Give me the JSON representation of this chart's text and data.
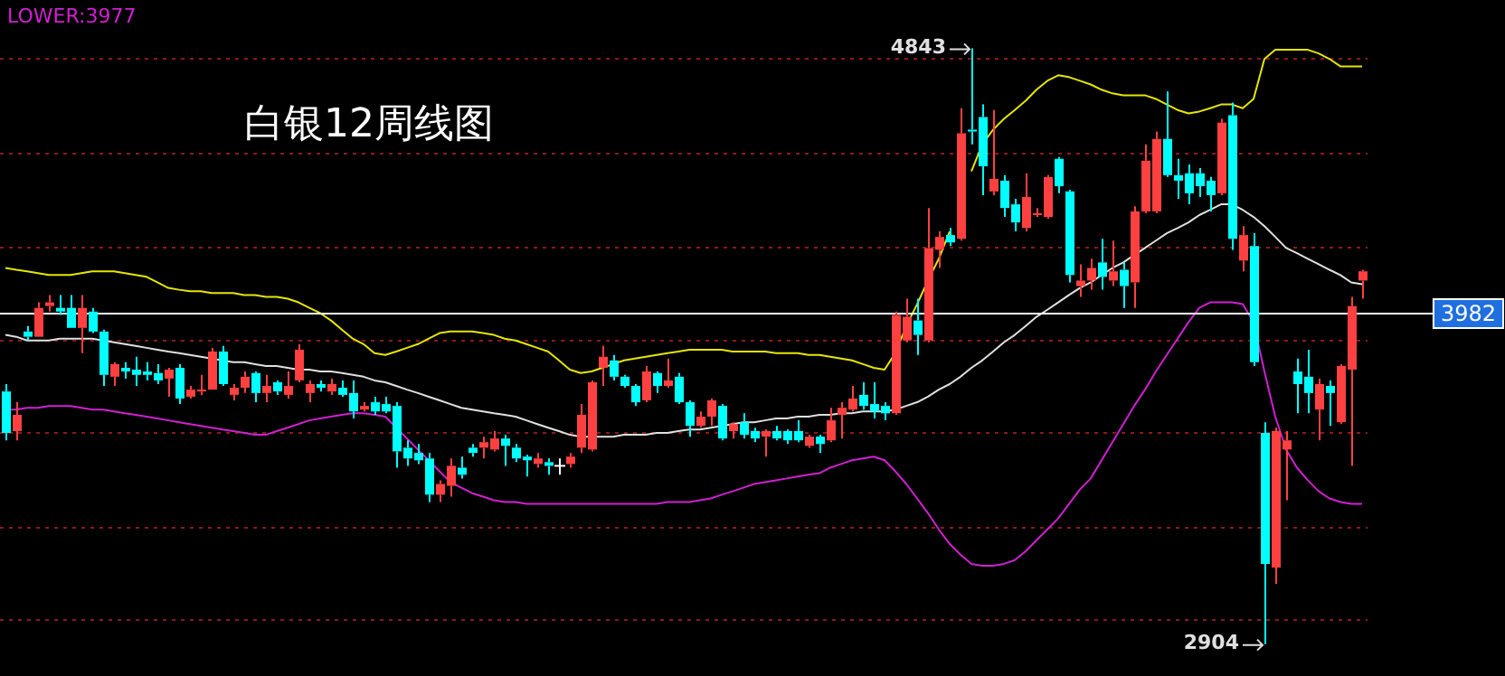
{
  "chart_data": {
    "type": "candlestick",
    "title": "白银12周线图",
    "annotations": [
      "LOWER:3977",
      "4843",
      "2904"
    ],
    "categories": [
      null,
      null,
      null,
      null,
      null,
      null,
      null,
      null,
      null,
      null,
      null,
      null,
      null,
      null,
      null,
      null,
      null,
      null,
      null,
      null,
      null,
      null,
      null,
      null,
      null,
      null,
      null,
      null,
      null,
      null,
      null,
      null,
      null,
      null,
      null,
      null,
      null,
      null,
      null,
      null,
      null,
      null,
      null,
      null,
      null,
      null,
      null,
      null,
      null,
      null,
      null,
      null,
      null,
      null,
      null,
      null,
      null,
      null,
      null,
      null,
      null,
      null,
      null,
      null,
      null,
      null,
      null,
      null,
      null,
      null,
      null,
      null,
      null,
      null,
      null,
      null,
      null,
      null,
      null,
      null,
      null,
      null,
      null,
      null,
      null,
      null,
      null,
      null,
      null,
      null,
      null,
      null,
      null,
      null,
      null,
      null,
      null,
      null,
      null,
      null,
      null,
      null,
      null,
      null,
      null,
      null,
      null,
      null,
      null,
      null,
      null,
      null,
      null,
      null,
      null,
      null,
      null,
      null,
      null,
      null,
      null,
      null,
      null,
      null,
      null,
      null
    ],
    "ohlc": [
      [
        3726,
        3750,
        3567,
        3591
      ],
      [
        3597,
        3691,
        3567,
        3650
      ],
      [
        3921,
        3939,
        3892,
        3904
      ],
      [
        3904,
        4016,
        3904,
        3998
      ],
      [
        4004,
        4040,
        3986,
        4016
      ],
      [
        3998,
        4040,
        3975,
        3986
      ],
      [
        3998,
        4040,
        3933,
        3933
      ],
      [
        3933,
        4040,
        3851,
        3998
      ],
      [
        3986,
        3998,
        3916,
        3921
      ],
      [
        3921,
        3927,
        3744,
        3780
      ],
      [
        3774,
        3821,
        3744,
        3815
      ],
      [
        3803,
        3821,
        3768,
        3791
      ],
      [
        3797,
        3839,
        3744,
        3780
      ],
      [
        3791,
        3821,
        3762,
        3780
      ],
      [
        3786,
        3815,
        3750,
        3762
      ],
      [
        3768,
        3803,
        3709,
        3797
      ],
      [
        3803,
        3815,
        3685,
        3703
      ],
      [
        3709,
        3744,
        3703,
        3732
      ],
      [
        3726,
        3780,
        3715,
        3732
      ],
      [
        3732,
        3868,
        3732,
        3856
      ],
      [
        3856,
        3874,
        3744,
        3750
      ],
      [
        3715,
        3750,
        3697,
        3738
      ],
      [
        3738,
        3791,
        3721,
        3774
      ],
      [
        3786,
        3791,
        3691,
        3721
      ],
      [
        3721,
        3780,
        3691,
        3744
      ],
      [
        3756,
        3762,
        3715,
        3726
      ],
      [
        3715,
        3791,
        3703,
        3744
      ],
      [
        3762,
        3880,
        3756,
        3862
      ],
      [
        3721,
        3762,
        3691,
        3750
      ],
      [
        3750,
        3762,
        3726,
        3738
      ],
      [
        3726,
        3768,
        3715,
        3750
      ],
      [
        3738,
        3762,
        3709,
        3715
      ],
      [
        3721,
        3762,
        3638,
        3661
      ],
      [
        3667,
        3691,
        3661,
        3679
      ],
      [
        3691,
        3709,
        3650,
        3661
      ],
      [
        3685,
        3709,
        3655,
        3661
      ],
      [
        3679,
        3691,
        3478,
        3531
      ],
      [
        3543,
        3567,
        3484,
        3508
      ],
      [
        3526,
        3555,
        3490,
        3502
      ],
      [
        3508,
        3526,
        3366,
        3390
      ],
      [
        3390,
        3437,
        3366,
        3425
      ],
      [
        3419,
        3508,
        3384,
        3484
      ],
      [
        3478,
        3514,
        3443,
        3455
      ],
      [
        3543,
        3555,
        3514,
        3526
      ],
      [
        3543,
        3579,
        3508,
        3561
      ],
      [
        3537,
        3597,
        3531,
        3573
      ],
      [
        3573,
        3585,
        3484,
        3549
      ],
      [
        3543,
        3555,
        3496,
        3508
      ],
      [
        3514,
        3520,
        3449,
        3502
      ],
      [
        3490,
        3526,
        3478,
        3508
      ],
      [
        3496,
        3508,
        3455,
        3484
      ],
      [
        3484,
        3508,
        3455,
        3484
      ],
      [
        3490,
        3526,
        3478,
        3514
      ],
      [
        3543,
        3685,
        3526,
        3650
      ],
      [
        3537,
        3762,
        3531,
        3756
      ],
      [
        3803,
        3874,
        3744,
        3839
      ],
      [
        3827,
        3845,
        3762,
        3774
      ],
      [
        3774,
        3780,
        3738,
        3744
      ],
      [
        3744,
        3750,
        3679,
        3691
      ],
      [
        3697,
        3809,
        3691,
        3791
      ],
      [
        3786,
        3791,
        3721,
        3744
      ],
      [
        3744,
        3833,
        3738,
        3762
      ],
      [
        3774,
        3786,
        3685,
        3691
      ],
      [
        3691,
        3697,
        3579,
        3614
      ],
      [
        3614,
        3661,
        3608,
        3644
      ],
      [
        3644,
        3703,
        3614,
        3697
      ],
      [
        3679,
        3685,
        3567,
        3573
      ],
      [
        3597,
        3626,
        3573,
        3620
      ],
      [
        3626,
        3655,
        3573,
        3585
      ],
      [
        3597,
        3608,
        3561,
        3573
      ],
      [
        3579,
        3602,
        3514,
        3597
      ],
      [
        3597,
        3614,
        3567,
        3573
      ],
      [
        3597,
        3602,
        3555,
        3567
      ],
      [
        3597,
        3632,
        3561,
        3567
      ],
      [
        3549,
        3585,
        3543,
        3579
      ],
      [
        3579,
        3585,
        3526,
        3555
      ],
      [
        3567,
        3673,
        3561,
        3632
      ],
      [
        3650,
        3691,
        3573,
        3673
      ],
      [
        3667,
        3744,
        3661,
        3703
      ],
      [
        3715,
        3756,
        3667,
        3679
      ],
      [
        3685,
        3756,
        3638,
        3661
      ],
      [
        3679,
        3691,
        3632,
        3655
      ],
      [
        3655,
        3986,
        3650,
        3975
      ],
      [
        3892,
        4028,
        3886,
        3969
      ],
      [
        3957,
        4028,
        3845,
        3910
      ],
      [
        3892,
        4323,
        3886,
        4193
      ],
      [
        4187,
        4247,
        4128,
        4229
      ],
      [
        4235,
        4258,
        4199,
        4211
      ],
      [
        4223,
        4648,
        4217,
        4566
      ],
      [
        4578,
        4843,
        4530,
        4572
      ],
      [
        4619,
        4660,
        4365,
        4459
      ],
      [
        4377,
        4642,
        4365,
        4418
      ],
      [
        4412,
        4430,
        4294,
        4323
      ],
      [
        4335,
        4353,
        4247,
        4276
      ],
      [
        4258,
        4436,
        4247,
        4359
      ],
      [
        4300,
        4323,
        4294,
        4306
      ],
      [
        4294,
        4430,
        4288,
        4424
      ],
      [
        4483,
        4489,
        4371,
        4394
      ],
      [
        4377,
        4382,
        4081,
        4105
      ],
      [
        4069,
        4140,
        4034,
        4087
      ],
      [
        4087,
        4158,
        4057,
        4128
      ],
      [
        4146,
        4223,
        4057,
        4099
      ],
      [
        4087,
        4217,
        4069,
        4117
      ],
      [
        4122,
        4146,
        3998,
        4069
      ],
      [
        4081,
        4329,
        3998,
        4312
      ],
      [
        4312,
        4530,
        4306,
        4477
      ],
      [
        4312,
        4572,
        4306,
        4548
      ],
      [
        4548,
        4702,
        4424,
        4430
      ],
      [
        4430,
        4483,
        4353,
        4412
      ],
      [
        4436,
        4465,
        4335,
        4371
      ],
      [
        4436,
        4453,
        4359,
        4394
      ],
      [
        4412,
        4424,
        4312,
        4365
      ],
      [
        4371,
        4613,
        4365,
        4601
      ],
      [
        4625,
        4666,
        4187,
        4223
      ],
      [
        4152,
        4264,
        4117,
        4235
      ],
      [
        4199,
        4241,
        3809,
        3821
      ],
      [
        3591,
        3626,
        2904,
        3165
      ],
      [
        3153,
        3608,
        3100,
        3597
      ],
      [
        3537,
        3597,
        3372,
        3567
      ],
      [
        3791,
        3833,
        3655,
        3750
      ],
      [
        3774,
        3862,
        3655,
        3721
      ],
      [
        3667,
        3768,
        3567,
        3750
      ],
      [
        3744,
        3762,
        3614,
        3721
      ],
      [
        3626,
        3815,
        3620,
        3809
      ],
      [
        3797,
        4034,
        3484,
        4004
      ],
      [
        4087,
        4122,
        4028,
        4117
      ]
    ],
    "colors": [
      "#00ffff",
      "#ff4040",
      "#00ffff",
      "#ff4040",
      "#ff4040",
      "#00ffff",
      "#00ffff",
      "#ff4040",
      "#00ffff",
      "#00ffff",
      "#ff4040",
      "#00ffff",
      "#00ffff",
      "#00ffff",
      "#00ffff",
      "#ff4040",
      "#00ffff",
      "#ff4040",
      "#ff4040",
      "#ff4040",
      "#00ffff",
      "#ff4040",
      "#ff4040",
      "#00ffff",
      "#ff4040",
      "#00ffff",
      "#ff4040",
      "#ff4040",
      "#ff4040",
      "#00ffff",
      "#ff4040",
      "#00ffff",
      "#00ffff",
      "#ff4040",
      "#00ffff",
      "#00ffff",
      "#00ffff",
      "#00ffff",
      "#00ffff",
      "#00ffff",
      "#ff4040",
      "#ff4040",
      "#00ffff",
      "#00ffff",
      "#ff4040",
      "#ff4040",
      "#00ffff",
      "#00ffff",
      "#00ffff",
      "#ff4040",
      "#00ffff",
      "#ffffff",
      "#ff4040",
      "#ff4040",
      "#ff4040",
      "#ff4040",
      "#00ffff",
      "#00ffff",
      "#00ffff",
      "#ff4040",
      "#00ffff",
      "#ff4040",
      "#00ffff",
      "#00ffff",
      "#ff4040",
      "#ff4040",
      "#00ffff",
      "#ff4040",
      "#00ffff",
      "#00ffff",
      "#ff4040",
      "#00ffff",
      "#00ffff",
      "#00ffff",
      "#ff4040",
      "#00ffff",
      "#ff4040",
      "#ff4040",
      "#ff4040",
      "#00ffff",
      "#00ffff",
      "#00ffff",
      "#ff4040",
      "#ff4040",
      "#00ffff",
      "#ff4040",
      "#ff4040",
      "#00ffff",
      "#ff4040",
      "#00ffff",
      "#00ffff",
      "#ff4040",
      "#00ffff",
      "#00ffff",
      "#ff4040",
      "#ff4040",
      "#ff4040",
      "#00ffff",
      "#00ffff",
      "#ff4040",
      "#ff4040",
      "#00ffff",
      "#ff4040",
      "#00ffff",
      "#ff4040",
      "#ff4040",
      "#ff4040",
      "#00ffff",
      "#00ffff",
      "#00ffff",
      "#00ffff",
      "#00ffff",
      "#ff4040",
      "#00ffff",
      "#ff4040",
      "#00ffff",
      "#00ffff",
      "#ff4040",
      "#ff4040",
      "#00ffff",
      "#00ffff",
      "#ff4040",
      "#00ffff",
      "#ff4040",
      "#ff4040",
      "#ff4040"
    ],
    "series": [
      {
        "type": "line",
        "color": "#e6e600",
        "values": [
          4128,
          4122,
          4117,
          4111,
          4105,
          4105,
          4105,
          4111,
          4117,
          4117,
          4117,
          4111,
          4105,
          4099,
          4081,
          4063,
          4057,
          4052,
          4052,
          4046,
          4046,
          4046,
          4040,
          4040,
          4034,
          4034,
          4028,
          4016,
          3998,
          3981,
          3957,
          3927,
          3898,
          3880,
          3851,
          3845,
          3856,
          3868,
          3880,
          3898,
          3916,
          3921,
          3921,
          3921,
          3916,
          3910,
          3898,
          3892,
          3880,
          3868,
          3856,
          3827,
          3797,
          3786,
          3791,
          3803,
          3815,
          3827,
          3833,
          3839,
          3845,
          3851,
          3856,
          3862,
          3862,
          3862,
          3862,
          3856,
          3856,
          3856,
          3856,
          3851,
          3851,
          3851,
          3845,
          3845,
          3839,
          3833,
          3827,
          3815,
          3803,
          3797,
          3851,
          3939,
          4010,
          4087,
          4158,
          4247,
          null,
          4442,
          4530,
          4578,
          4613,
          4642,
          4672,
          4708,
          4737,
          4755,
          4749,
          4737,
          4725,
          4708,
          4696,
          4690,
          4690,
          4690,
          4678,
          4660,
          4642,
          4631,
          4637,
          4648,
          4660,
          4660,
          4648,
          4678,
          4808,
          4838,
          4838,
          4838,
          4838,
          4826,
          4808,
          4784,
          4784,
          4784
        ]
      },
      {
        "type": "line",
        "color": "#e0e0e0",
        "values": [
          3910,
          3904,
          3892,
          3892,
          3892,
          3898,
          3898,
          3898,
          3898,
          3892,
          3886,
          3880,
          3874,
          3868,
          3862,
          3856,
          3851,
          3845,
          3839,
          3833,
          3827,
          3821,
          3821,
          3815,
          3809,
          3809,
          3803,
          3797,
          3797,
          3791,
          3791,
          3786,
          3780,
          3774,
          3762,
          3756,
          3744,
          3732,
          3721,
          3709,
          3697,
          3685,
          3673,
          3667,
          3661,
          3655,
          3650,
          3644,
          3632,
          3620,
          3608,
          3597,
          3585,
          3579,
          3579,
          3579,
          3579,
          3585,
          3585,
          3585,
          3591,
          3591,
          3597,
          3602,
          3602,
          3608,
          3614,
          3620,
          3626,
          3626,
          3632,
          3638,
          3638,
          3644,
          3644,
          3650,
          3650,
          3655,
          3655,
          3661,
          3661,
          3661,
          3667,
          3679,
          3691,
          3709,
          3732,
          3750,
          3774,
          3803,
          3827,
          3856,
          3886,
          3910,
          3939,
          3969,
          3992,
          4016,
          4040,
          4063,
          4081,
          4105,
          4128,
          4146,
          4170,
          4193,
          4217,
          4241,
          4258,
          4276,
          4300,
          4317,
          4335,
          4335,
          4317,
          4294,
          4264,
          4229,
          4193,
          4176,
          4158,
          4140,
          4122,
          4105,
          4081,
          4075
        ]
      },
      {
        "type": "line",
        "color": "#d020d0",
        "values": [
          3667,
          3667,
          3673,
          3673,
          3679,
          3679,
          3679,
          3673,
          3667,
          3667,
          3661,
          3655,
          3650,
          3644,
          3638,
          3632,
          3626,
          3620,
          3614,
          3608,
          3602,
          3597,
          3591,
          3585,
          3585,
          3597,
          3608,
          3620,
          3632,
          3638,
          3644,
          3650,
          3655,
          3655,
          3650,
          3644,
          3608,
          3573,
          3537,
          3502,
          3466,
          3431,
          3413,
          3395,
          3384,
          3372,
          3366,
          3366,
          3360,
          3360,
          3360,
          3360,
          3360,
          3360,
          3360,
          3360,
          3360,
          3360,
          3360,
          3360,
          3360,
          3366,
          3366,
          3366,
          3372,
          3378,
          3390,
          3401,
          3413,
          3425,
          3431,
          3437,
          3443,
          3449,
          3455,
          3460,
          3478,
          3490,
          3502,
          3508,
          3514,
          3502,
          3466,
          3425,
          3378,
          3330,
          3277,
          3230,
          3195,
          3165,
          3159,
          3159,
          3165,
          3177,
          3206,
          3242,
          3277,
          3313,
          3360,
          3407,
          3443,
          3502,
          3561,
          3620,
          3679,
          3732,
          3791,
          3845,
          3898,
          3951,
          3998,
          4016,
          4016,
          4016,
          4010,
          3951,
          3791,
          3644,
          3537,
          3478,
          3437,
          3401,
          3378,
          3366,
          3360,
          3360
        ]
      }
    ],
    "ylim": [
      2800,
      5000
    ],
    "yticks": [
      {
        "value": 4808,
        "label": null
      },
      {
        "value": 4501,
        "label": null
      },
      {
        "value": 4193,
        "label": null
      },
      {
        "value": 3892,
        "label": null
      },
      {
        "value": 3591,
        "label": null
      },
      {
        "value": 3283,
        "label": null
      },
      {
        "value": 2982,
        "label": null
      }
    ],
    "grid": "y",
    "tick_labels": false,
    "ref_lines": [
      {
        "axis": "y",
        "value": 3982,
        "label": "3982",
        "color": "#ffffff"
      }
    ]
  }
}
